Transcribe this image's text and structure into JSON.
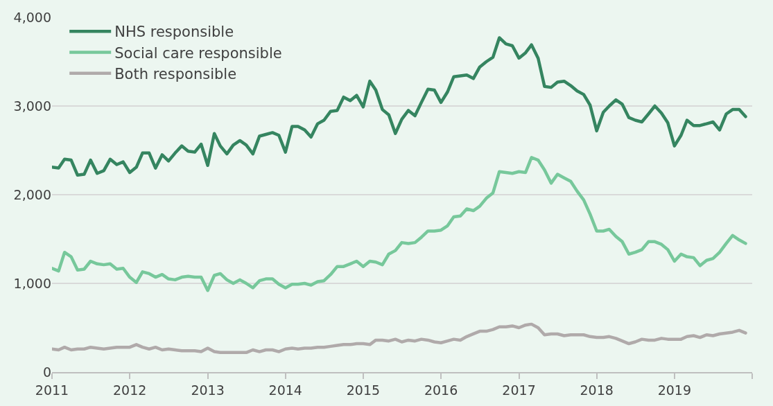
{
  "chart_data": {
    "type": "line",
    "x": [
      "2011-01",
      "2011-02",
      "2011-03",
      "2011-04",
      "2011-05",
      "2011-06",
      "2011-07",
      "2011-08",
      "2011-09",
      "2011-10",
      "2011-11",
      "2011-12",
      "2012-01",
      "2012-02",
      "2012-03",
      "2012-04",
      "2012-05",
      "2012-06",
      "2012-07",
      "2012-08",
      "2012-09",
      "2012-10",
      "2012-11",
      "2012-12",
      "2013-01",
      "2013-02",
      "2013-03",
      "2013-04",
      "2013-05",
      "2013-06",
      "2013-07",
      "2013-08",
      "2013-09",
      "2013-10",
      "2013-11",
      "2013-12",
      "2014-01",
      "2014-02",
      "2014-03",
      "2014-04",
      "2014-05",
      "2014-06",
      "2014-07",
      "2014-08",
      "2014-09",
      "2014-10",
      "2014-11",
      "2014-12",
      "2015-01",
      "2015-02",
      "2015-03",
      "2015-04",
      "2015-05",
      "2015-06",
      "2015-07",
      "2015-08",
      "2015-09",
      "2015-10",
      "2015-11",
      "2015-12",
      "2016-01",
      "2016-02",
      "2016-03",
      "2016-04",
      "2016-05",
      "2016-06",
      "2016-07",
      "2016-08",
      "2016-09",
      "2016-10",
      "2016-11",
      "2016-12",
      "2017-01",
      "2017-02",
      "2017-03",
      "2017-04",
      "2017-05",
      "2017-06",
      "2017-07",
      "2017-08",
      "2017-09",
      "2017-10",
      "2017-11",
      "2017-12",
      "2018-01",
      "2018-02",
      "2018-03",
      "2018-04",
      "2018-05",
      "2018-06",
      "2018-07",
      "2018-08",
      "2018-09",
      "2018-10",
      "2018-11",
      "2018-12",
      "2019-01",
      "2019-02",
      "2019-03",
      "2019-04",
      "2019-05",
      "2019-06",
      "2019-07",
      "2019-08",
      "2019-09",
      "2019-10",
      "2019-11",
      "2019-12"
    ],
    "series": [
      {
        "name": "NHS responsible",
        "color": "#358560",
        "values": [
          2310,
          2300,
          2400,
          2390,
          2220,
          2230,
          2390,
          2240,
          2270,
          2400,
          2340,
          2370,
          2250,
          2310,
          2470,
          2470,
          2300,
          2450,
          2380,
          2470,
          2550,
          2490,
          2480,
          2570,
          2330,
          2690,
          2550,
          2460,
          2560,
          2610,
          2560,
          2460,
          2660,
          2680,
          2700,
          2670,
          2480,
          2770,
          2770,
          2730,
          2650,
          2800,
          2840,
          2940,
          2950,
          3100,
          3060,
          3120,
          2990,
          3280,
          3180,
          2960,
          2900,
          2690,
          2850,
          2950,
          2890,
          3040,
          3190,
          3180,
          3040,
          3160,
          3330,
          3340,
          3350,
          3310,
          3440,
          3500,
          3550,
          3770,
          3700,
          3680,
          3540,
          3600,
          3690,
          3540,
          3220,
          3210,
          3270,
          3280,
          3230,
          3170,
          3130,
          3010,
          2720,
          2930,
          3000,
          3070,
          3020,
          2870,
          2840,
          2820,
          2910,
          3000,
          2920,
          2810,
          2550,
          2670,
          2840,
          2780,
          2780,
          2800,
          2820,
          2730,
          2910,
          2960,
          2960,
          2880
        ]
      },
      {
        "name": "Social care responsible",
        "color": "#77c89b",
        "values": [
          1170,
          1140,
          1350,
          1300,
          1150,
          1160,
          1250,
          1220,
          1210,
          1220,
          1160,
          1170,
          1070,
          1010,
          1130,
          1110,
          1070,
          1100,
          1050,
          1040,
          1070,
          1080,
          1070,
          1070,
          920,
          1090,
          1110,
          1040,
          1000,
          1040,
          1000,
          950,
          1030,
          1050,
          1050,
          990,
          950,
          990,
          990,
          1000,
          980,
          1020,
          1030,
          1100,
          1190,
          1190,
          1220,
          1250,
          1190,
          1250,
          1240,
          1210,
          1330,
          1370,
          1460,
          1450,
          1460,
          1520,
          1590,
          1590,
          1600,
          1650,
          1750,
          1760,
          1840,
          1820,
          1870,
          1960,
          2020,
          2260,
          2250,
          2240,
          2260,
          2250,
          2420,
          2390,
          2280,
          2130,
          2230,
          2190,
          2150,
          2040,
          1940,
          1780,
          1590,
          1590,
          1610,
          1530,
          1470,
          1330,
          1350,
          1380,
          1470,
          1470,
          1440,
          1380,
          1250,
          1330,
          1300,
          1290,
          1200,
          1260,
          1280,
          1350,
          1450,
          1540,
          1490,
          1450
        ]
      },
      {
        "name": "Both responsible",
        "color": "#b0aaaa",
        "values": [
          260,
          250,
          280,
          250,
          260,
          260,
          280,
          270,
          260,
          270,
          280,
          280,
          280,
          310,
          280,
          260,
          280,
          250,
          260,
          250,
          240,
          240,
          240,
          230,
          270,
          230,
          220,
          220,
          220,
          220,
          220,
          250,
          230,
          250,
          250,
          230,
          260,
          270,
          260,
          270,
          270,
          280,
          280,
          290,
          300,
          310,
          310,
          320,
          320,
          310,
          360,
          360,
          350,
          370,
          340,
          360,
          350,
          370,
          360,
          340,
          330,
          350,
          370,
          360,
          400,
          430,
          460,
          460,
          480,
          510,
          510,
          520,
          500,
          530,
          540,
          500,
          420,
          430,
          430,
          410,
          420,
          420,
          420,
          400,
          390,
          390,
          400,
          380,
          350,
          320,
          340,
          370,
          360,
          360,
          380,
          370,
          370,
          370,
          400,
          410,
          390,
          420,
          410,
          430,
          440,
          450,
          470,
          440
        ]
      }
    ],
    "xlim": [
      "2011-01",
      "2020-01"
    ],
    "xticks": [
      {
        "value": "2011-01",
        "label": "2011"
      },
      {
        "value": "2012-01",
        "label": "2012"
      },
      {
        "value": "2013-01",
        "label": "2013"
      },
      {
        "value": "2014-01",
        "label": "2014"
      },
      {
        "value": "2015-01",
        "label": "2015"
      },
      {
        "value": "2016-01",
        "label": "2016"
      },
      {
        "value": "2017-01",
        "label": "2017"
      },
      {
        "value": "2018-01",
        "label": "2018"
      },
      {
        "value": "2019-01",
        "label": "2019"
      },
      {
        "value": "2020-01",
        "label": null
      }
    ],
    "ylim": [
      0,
      4000
    ],
    "yticks": [
      0,
      {
        "value": 1000,
        "label": "1,000"
      },
      {
        "value": 2000,
        "label": "2,000"
      },
      {
        "value": 3000,
        "label": "3,000"
      },
      {
        "value": 4000,
        "label": "4,000"
      }
    ],
    "grid": "y",
    "legend": "top left",
    "line_style": "solid",
    "marker": "none"
  }
}
